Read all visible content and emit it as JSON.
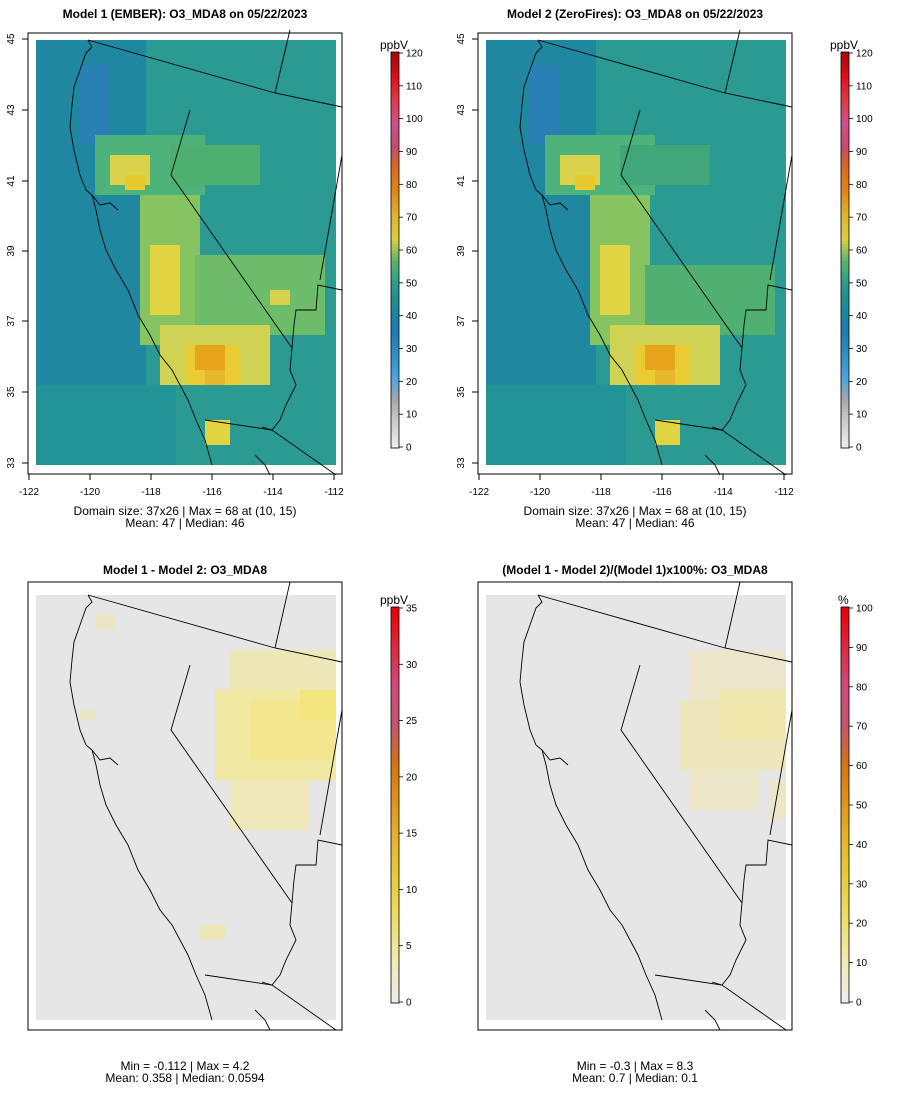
{
  "panels": [
    {
      "title": "Model 1 (EMBER): O3_MDA8 on 05/22/2023",
      "unit": "ppbV",
      "stats_line1": "Domain size: 37x26 | Max = 68 at (10, 15)",
      "stats_line2": "Mean: 47 |  Median: 46",
      "colorbar_ticks": [
        "0",
        "10",
        "20",
        "30",
        "40",
        "50",
        "60",
        "70",
        "80",
        "90",
        "100",
        "110",
        "120"
      ],
      "colorbar_range": [
        0,
        120
      ],
      "lon_ticks": [
        "-122",
        "-120",
        "-118",
        "-116",
        "-114",
        "-112"
      ],
      "lat_ticks": [
        "33",
        "35",
        "37",
        "39",
        "41",
        "43",
        "45"
      ]
    },
    {
      "title": "Model 2 (ZeroFires): O3_MDA8 on 05/22/2023",
      "unit": "ppbV",
      "stats_line1": "Domain size: 37x26 | Max = 68 at (10, 15)",
      "stats_line2": "Mean: 47 |  Median: 46",
      "colorbar_ticks": [
        "0",
        "10",
        "20",
        "30",
        "40",
        "50",
        "60",
        "70",
        "80",
        "90",
        "100",
        "110",
        "120"
      ],
      "colorbar_range": [
        0,
        120
      ],
      "lon_ticks": [
        "-122",
        "-120",
        "-118",
        "-116",
        "-114",
        "-112"
      ],
      "lat_ticks": [
        "33",
        "35",
        "37",
        "39",
        "41",
        "43",
        "45"
      ]
    },
    {
      "title": "Model 1 - Model 2: O3_MDA8",
      "unit": "ppbV",
      "stats_line1": "Min = -0.112 | Max = 4.2",
      "stats_line2": "Mean: 0.358 |  Median: 0.0594",
      "colorbar_ticks": [
        "0",
        "5",
        "10",
        "15",
        "20",
        "25",
        "30",
        "35"
      ],
      "colorbar_range": [
        0,
        35
      ]
    },
    {
      "title": "(Model 1 - Model 2)/(Model 1)x100%: O3_MDA8",
      "unit": "%",
      "stats_line1": "Min = -0.3 | Max = 8.3",
      "stats_line2": "Mean: 0.7 |  Median: 0.1",
      "colorbar_ticks": [
        "0",
        "10",
        "20",
        "30",
        "40",
        "50",
        "60",
        "70",
        "80",
        "90",
        "100"
      ],
      "colorbar_range": [
        0,
        100
      ]
    }
  ],
  "colors": {
    "ozone_low": "#2a8fa0",
    "ozone_mid": "#5fb86a",
    "ozone_high": "#e6cf3c",
    "ozone_peak": "#e9a41e",
    "diff_background": "#e6e6e6",
    "diff_tint": "#f1e9a3"
  }
}
